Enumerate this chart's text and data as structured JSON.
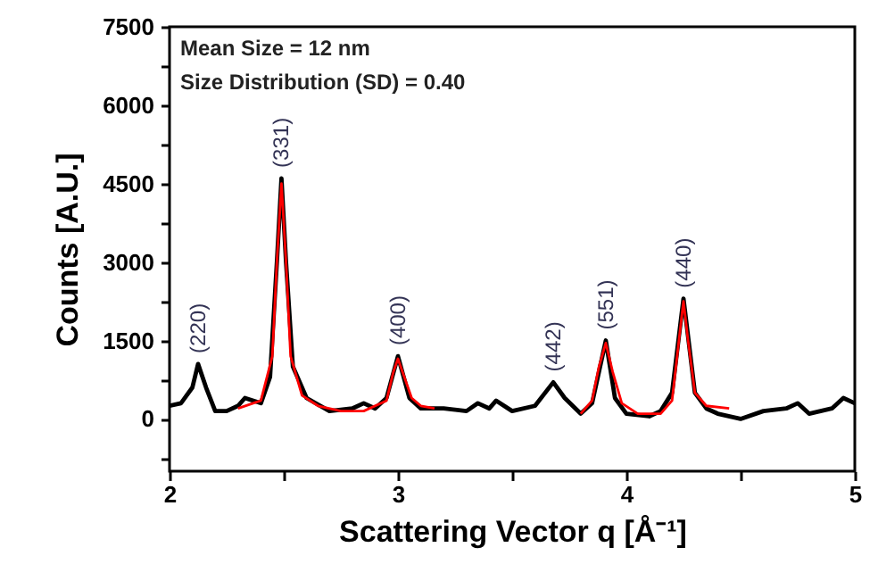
{
  "chart_data": {
    "type": "line",
    "xlabel": "Scattering Vector q [Å⁻¹]",
    "ylabel": "Counts [A.U.]",
    "xlim": [
      2,
      5
    ],
    "xticks": [
      2,
      {
        "value": 2.5,
        "label": null
      },
      3,
      {
        "value": 3.5,
        "label": null
      },
      4,
      {
        "value": 4.5,
        "label": null
      },
      5
    ],
    "ylim": [
      -1000,
      7500
    ],
    "yticks": [
      {
        "value": -750,
        "label": null
      },
      0,
      {
        "value": 750,
        "label": null
      },
      1500,
      {
        "value": 2250,
        "label": null
      },
      3000,
      {
        "value": 3750,
        "label": null
      },
      4500,
      {
        "value": 5250,
        "label": null
      },
      6000,
      {
        "value": 6750,
        "label": null
      },
      7500
    ],
    "grid": false,
    "series": [
      {
        "color": "#000000",
        "x": [
          2.0,
          2.05,
          2.1,
          2.125,
          2.16,
          2.2,
          2.25,
          2.3,
          2.33,
          2.4,
          2.44,
          2.47,
          2.49,
          2.51,
          2.54,
          2.6,
          2.7,
          2.8,
          2.85,
          2.9,
          2.95,
          3.0,
          3.05,
          3.1,
          3.2,
          3.3,
          3.35,
          3.4,
          3.43,
          3.5,
          3.6,
          3.68,
          3.73,
          3.8,
          3.85,
          3.91,
          3.95,
          4.0,
          4.1,
          4.15,
          4.2,
          4.25,
          4.3,
          4.35,
          4.4,
          4.5,
          4.6,
          4.7,
          4.75,
          4.8,
          4.9,
          4.95,
          5.0
        ],
        "values": [
          250,
          300,
          600,
          1050,
          600,
          150,
          150,
          250,
          400,
          300,
          800,
          3000,
          4600,
          3000,
          1000,
          400,
          150,
          200,
          300,
          200,
          400,
          1200,
          400,
          200,
          200,
          150,
          300,
          200,
          350,
          150,
          250,
          700,
          400,
          100,
          300,
          1500,
          400,
          100,
          50,
          150,
          500,
          2300,
          500,
          200,
          100,
          0,
          150,
          200,
          300,
          100,
          200,
          400,
          300
        ]
      },
      {
        "color": "#ff0000",
        "x": [
          2.3,
          2.4,
          2.45,
          2.47,
          2.49,
          2.51,
          2.53,
          2.58,
          2.65,
          2.75,
          2.85,
          2.95,
          2.98,
          3.0,
          3.02,
          3.06,
          3.1,
          3.16,
          3.5,
          3.8,
          3.85,
          3.88,
          3.91,
          3.94,
          3.98,
          4.05,
          4.15,
          4.2,
          4.23,
          4.25,
          4.27,
          4.3,
          4.35,
          4.45
        ],
        "values": [
          200,
          350,
          1200,
          3000,
          4500,
          3000,
          1200,
          450,
          250,
          150,
          150,
          350,
          900,
          1150,
          900,
          400,
          250,
          200,
          null,
          100,
          350,
          1000,
          1450,
          900,
          300,
          100,
          100,
          350,
          1500,
          2250,
          1500,
          500,
          250,
          200
        ]
      }
    ],
    "annotations": [
      "Mean Size = 12 nm",
      "Size Distribution (SD) = 0.40",
      {
        "text": "(220)",
        "x": 2.125,
        "y": 1050
      },
      {
        "text": "(331)",
        "x": 2.49,
        "y": 4600
      },
      {
        "text": "(400)",
        "x": 3.0,
        "y": 1200
      },
      {
        "text": "(442)",
        "x": 3.68,
        "y": 700
      },
      {
        "text": "(551)",
        "x": 3.91,
        "y": 1500
      },
      {
        "text": "(440)",
        "x": 4.25,
        "y": 2300
      }
    ]
  }
}
